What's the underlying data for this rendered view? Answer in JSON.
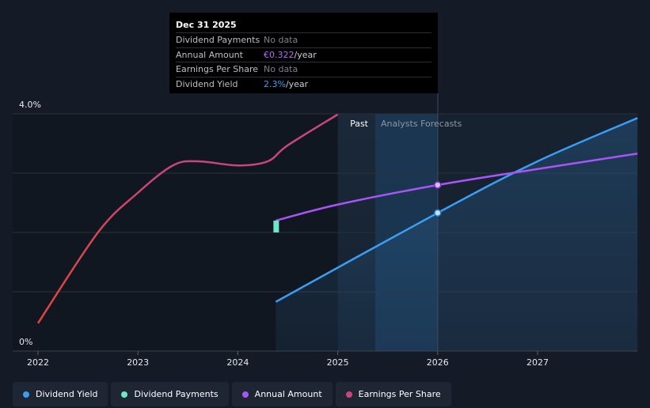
{
  "tooltip": {
    "date": "Dec 31 2025",
    "rows": [
      {
        "label": "Dividend Payments",
        "value": "No data",
        "unit": ""
      },
      {
        "label": "Annual Amount",
        "value": "€0.322",
        "unit": "/year",
        "color": "#b56cf5"
      },
      {
        "label": "Earnings Per Share",
        "value": "No data",
        "unit": ""
      },
      {
        "label": "Dividend Yield",
        "value": "2.3%",
        "unit": "/year",
        "color": "#3b9ef5"
      }
    ]
  },
  "regions": {
    "past": "Past",
    "forecast": "Analysts Forecasts"
  },
  "legend": [
    {
      "label": "Dividend Yield",
      "color": "#3b9ef5"
    },
    {
      "label": "Dividend Payments",
      "color": "#6ee7c8"
    },
    {
      "label": "Annual Amount",
      "color": "#a855f7"
    },
    {
      "label": "Earnings Per Share",
      "color": "#c8457e"
    }
  ],
  "chart_data": {
    "type": "line",
    "x_ticks": [
      "2022",
      "2023",
      "2024",
      "2025",
      "2026",
      "2027"
    ],
    "y_ticks": [
      "0%",
      "4.0%"
    ],
    "ylim": [
      0,
      4.0
    ],
    "series": [
      {
        "name": "Dividend Yield",
        "color": "#3b9ef5",
        "points": [
          [
            2024.38,
            0.83
          ],
          [
            2026.0,
            2.33
          ],
          [
            2027.0,
            3.2
          ],
          [
            2028.0,
            3.93
          ]
        ]
      },
      {
        "name": "Annual Amount",
        "color": "#a855f7",
        "points": [
          [
            2024.38,
            2.2
          ],
          [
            2025.0,
            2.47
          ],
          [
            2026.0,
            2.8
          ],
          [
            2027.0,
            3.07
          ],
          [
            2028.0,
            3.33
          ]
        ]
      },
      {
        "name": "Earnings Per Share",
        "color": "#c8457e",
        "points": [
          [
            2022.0,
            0.47
          ],
          [
            2022.6,
            2.0
          ],
          [
            2023.0,
            2.67
          ],
          [
            2023.35,
            3.13
          ],
          [
            2023.6,
            3.2
          ],
          [
            2024.0,
            3.13
          ],
          [
            2024.3,
            3.2
          ],
          [
            2024.5,
            3.47
          ],
          [
            2025.0,
            3.99
          ]
        ]
      },
      {
        "name": "Dividend Payments",
        "color": "#6ee7c8",
        "points": [
          [
            2024.38,
            2.0
          ],
          [
            2024.38,
            2.2
          ]
        ]
      }
    ]
  }
}
